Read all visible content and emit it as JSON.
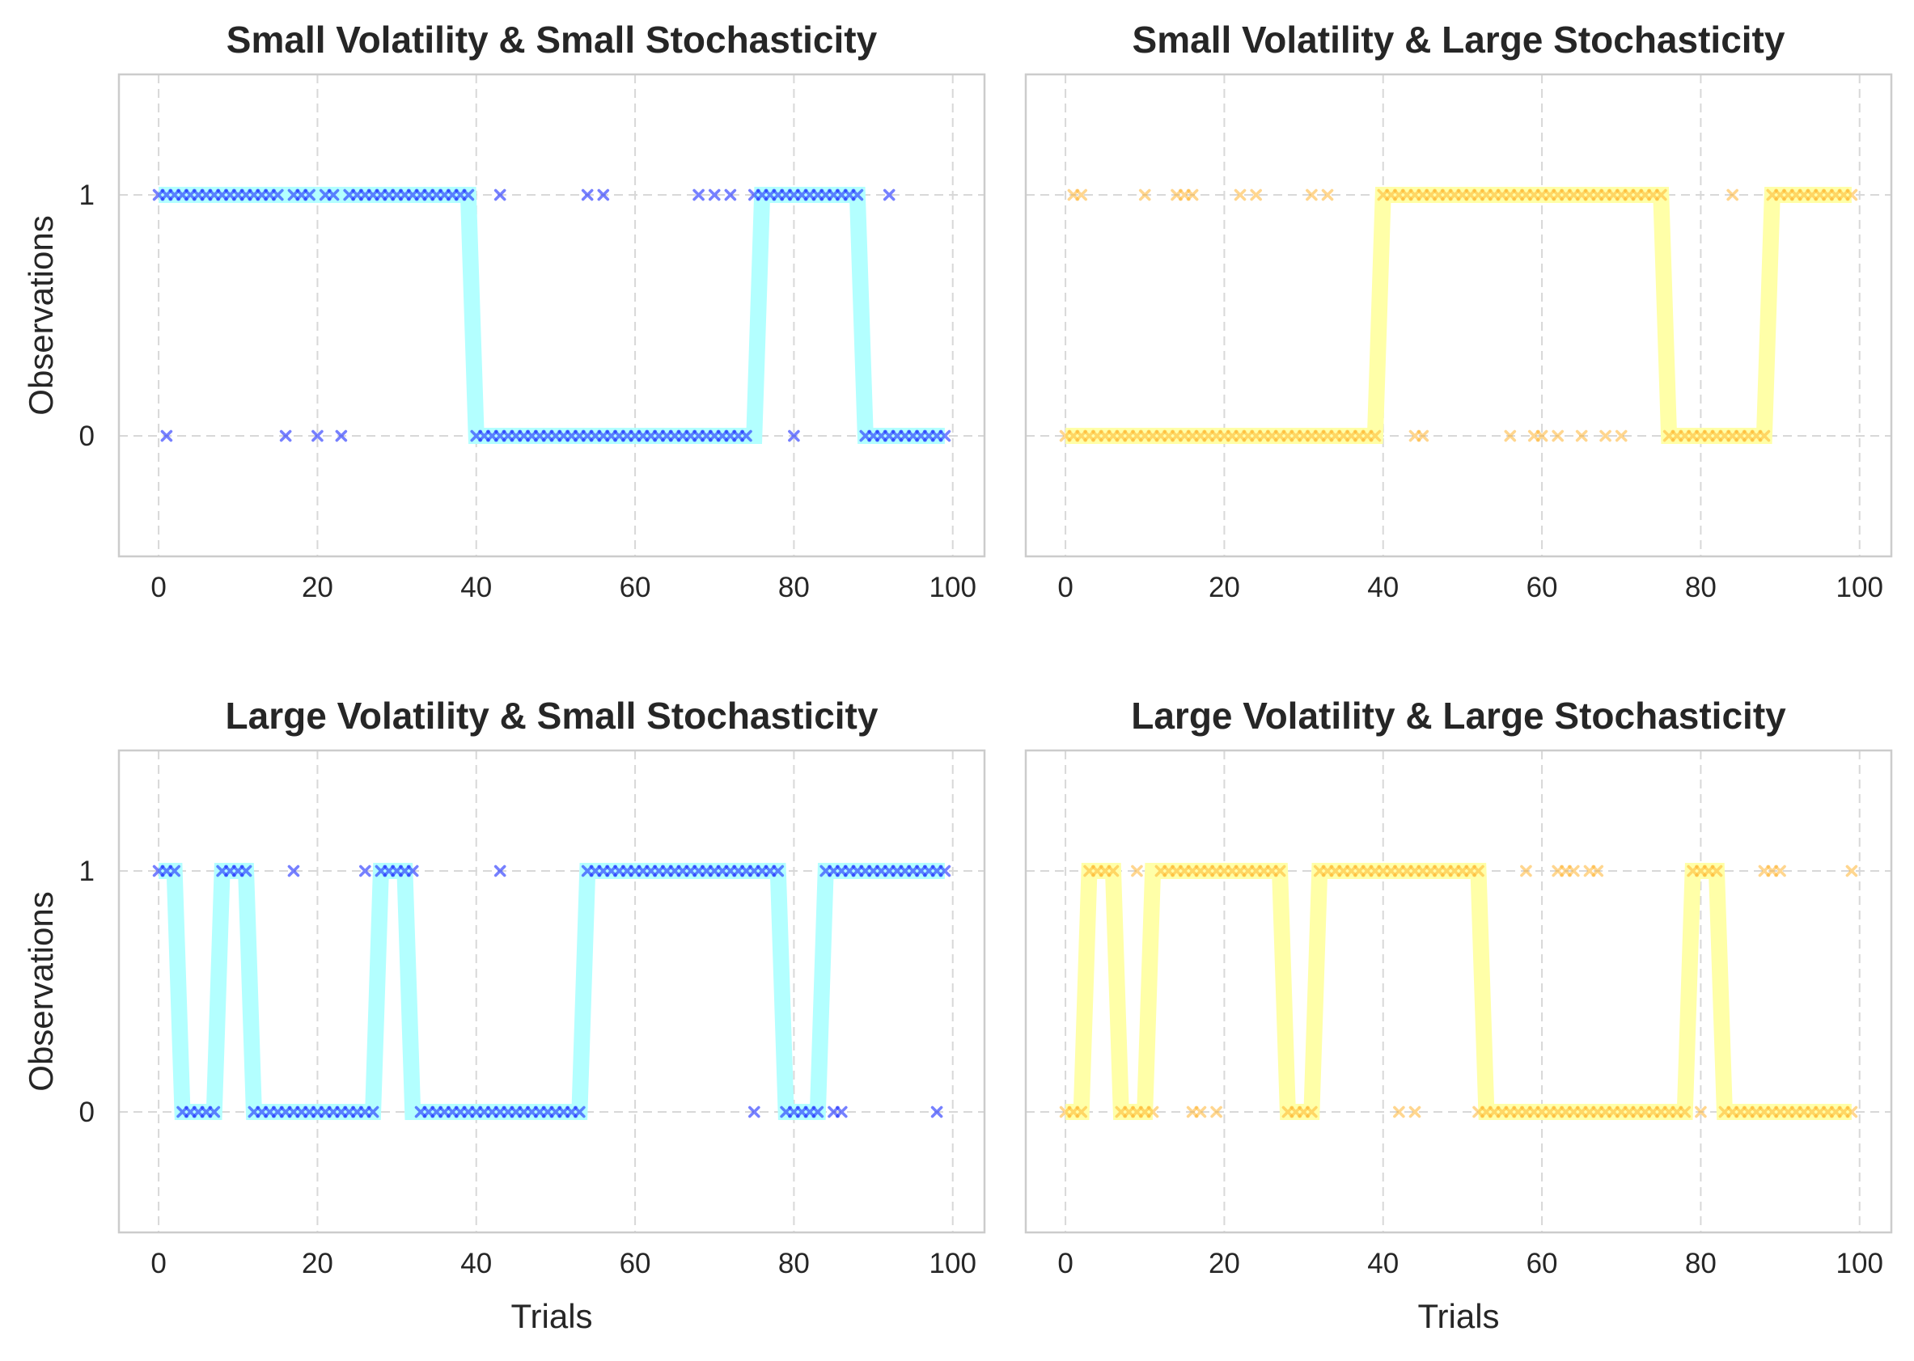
{
  "colors": {
    "blue_state_line": "#b3ffff",
    "blue_markers": "#1a2cff",
    "yellow_state_line": "#ffffa8",
    "yellow_markers": "#ffad1f",
    "grid": "#d8d8d8",
    "frame": "#cccccc"
  },
  "chart_data": [
    {
      "type": "line",
      "title": "Small Volatility & Small Stochasticity",
      "xlabel": "",
      "ylabel": "Observations",
      "xlim": [
        -5,
        104
      ],
      "ylim": [
        -0.5,
        1.5
      ],
      "xticks": [
        0,
        20,
        40,
        60,
        80,
        100
      ],
      "yticks": [
        0,
        1
      ],
      "grid": true,
      "palette": "blue",
      "series": [
        {
          "kind": "state_line",
          "segments": [
            [
              0,
              1
            ],
            [
              39,
              1
            ],
            [
              40,
              0
            ],
            [
              75,
              0
            ],
            [
              76,
              1
            ],
            [
              88,
              1
            ],
            [
              89,
              0
            ],
            [
              99,
              0
            ]
          ]
        },
        {
          "kind": "markers",
          "one_ranges": [
            [
              0,
              15
            ],
            [
              17,
              19
            ],
            [
              21,
              22
            ],
            [
              24,
              39
            ],
            [
              75,
              88
            ]
          ],
          "zero_ranges": [
            [
              40,
              74
            ],
            [
              89,
              99
            ]
          ],
          "off_ones": [
            43,
            54,
            56,
            68,
            70,
            72,
            92
          ],
          "off_zeros": [
            1,
            16,
            20,
            23,
            80
          ]
        }
      ]
    },
    {
      "type": "line",
      "title": "Small Volatility & Large Stochasticity",
      "xlabel": "",
      "ylabel": "",
      "xlim": [
        -5,
        104
      ],
      "ylim": [
        -0.5,
        1.5
      ],
      "xticks": [
        0,
        20,
        40,
        60,
        80,
        100
      ],
      "yticks": [
        0,
        1
      ],
      "grid": true,
      "palette": "yellow",
      "series": [
        {
          "kind": "state_line",
          "segments": [
            [
              0,
              0
            ],
            [
              39,
              0
            ],
            [
              40,
              1
            ],
            [
              75,
              1
            ],
            [
              76,
              0
            ],
            [
              88,
              0
            ],
            [
              89,
              1
            ],
            [
              99,
              1
            ]
          ]
        },
        {
          "kind": "markers",
          "one_ranges": [
            [
              40,
              75
            ],
            [
              89,
              99
            ]
          ],
          "zero_ranges": [
            [
              0,
              39
            ],
            [
              76,
              88
            ]
          ],
          "off_ones": [
            1,
            2,
            10,
            14,
            15,
            16,
            22,
            24,
            31,
            33,
            84
          ],
          "off_zeros": [
            44,
            45,
            56,
            59,
            60,
            62,
            65,
            68,
            70
          ]
        }
      ]
    },
    {
      "type": "line",
      "title": "Large Volatility & Small Stochasticity",
      "xlabel": "Trials",
      "ylabel": "Observations",
      "xlim": [
        -5,
        104
      ],
      "ylim": [
        -0.5,
        1.5
      ],
      "xticks": [
        0,
        20,
        40,
        60,
        80,
        100
      ],
      "yticks": [
        0,
        1
      ],
      "grid": true,
      "palette": "blue",
      "series": [
        {
          "kind": "state_line",
          "segments": [
            [
              0,
              1
            ],
            [
              2,
              1
            ],
            [
              3,
              0
            ],
            [
              7,
              0
            ],
            [
              8,
              1
            ],
            [
              11,
              1
            ],
            [
              12,
              0
            ],
            [
              27,
              0
            ],
            [
              28,
              1
            ],
            [
              31,
              1
            ],
            [
              32,
              0
            ],
            [
              53,
              0
            ],
            [
              54,
              1
            ],
            [
              78,
              1
            ],
            [
              79,
              0
            ],
            [
              83,
              0
            ],
            [
              84,
              1
            ],
            [
              99,
              1
            ]
          ]
        },
        {
          "kind": "markers",
          "one_ranges": [
            [
              0,
              2
            ],
            [
              8,
              11
            ],
            [
              28,
              32
            ],
            [
              54,
              78
            ],
            [
              84,
              99
            ]
          ],
          "zero_ranges": [
            [
              3,
              7
            ],
            [
              12,
              27
            ],
            [
              33,
              53
            ],
            [
              79,
              83
            ]
          ],
          "off_ones": [
            17,
            26,
            43
          ],
          "off_zeros": [
            75,
            85,
            86,
            98
          ]
        }
      ]
    },
    {
      "type": "line",
      "title": "Large Volatility & Large Stochasticity",
      "xlabel": "Trials",
      "ylabel": "",
      "xlim": [
        -5,
        104
      ],
      "ylim": [
        -0.5,
        1.5
      ],
      "xticks": [
        0,
        20,
        40,
        60,
        80,
        100
      ],
      "yticks": [
        0,
        1
      ],
      "grid": true,
      "palette": "yellow",
      "series": [
        {
          "kind": "state_line",
          "segments": [
            [
              0,
              0
            ],
            [
              2,
              0
            ],
            [
              3,
              1
            ],
            [
              6,
              1
            ],
            [
              7,
              0
            ],
            [
              10,
              0
            ],
            [
              11,
              1
            ],
            [
              27,
              1
            ],
            [
              28,
              0
            ],
            [
              31,
              0
            ],
            [
              32,
              1
            ],
            [
              52,
              1
            ],
            [
              53,
              0
            ],
            [
              78,
              0
            ],
            [
              79,
              1
            ],
            [
              82,
              1
            ],
            [
              83,
              0
            ],
            [
              99,
              0
            ]
          ]
        },
        {
          "kind": "markers",
          "one_ranges": [
            [
              3,
              6
            ],
            [
              12,
              27
            ],
            [
              32,
              52
            ],
            [
              79,
              82
            ]
          ],
          "zero_ranges": [
            [
              0,
              2
            ],
            [
              7,
              11
            ],
            [
              28,
              31
            ],
            [
              53,
              78
            ],
            [
              83,
              99
            ]
          ],
          "off_ones": [
            9,
            58,
            62,
            63,
            64,
            66,
            67,
            88,
            89,
            90,
            99
          ],
          "off_zeros": [
            16,
            17,
            19,
            42,
            44,
            52,
            80
          ]
        }
      ]
    }
  ]
}
